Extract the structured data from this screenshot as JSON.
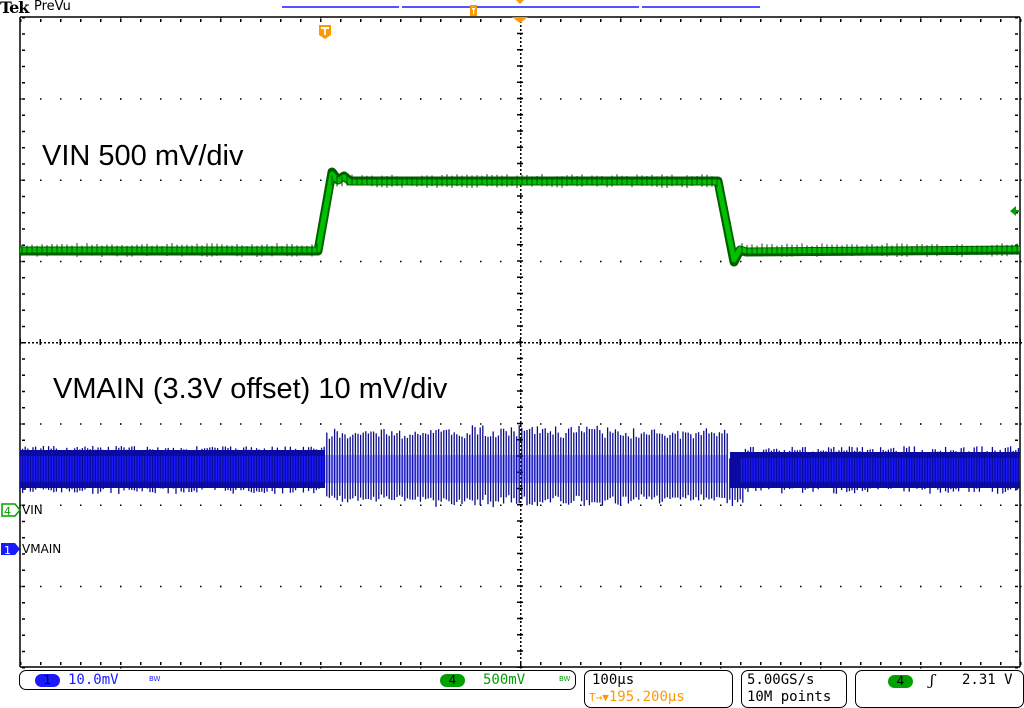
{
  "header": {
    "brand": "Tek",
    "mode": "PreVu"
  },
  "annotations": {
    "vin_label": "VIN 500 mV/div",
    "vmain_label": "VMAIN (3.3V offset) 10 mV/div"
  },
  "channel_markers": [
    {
      "number": "4",
      "name": "VIN",
      "color": "#00a000"
    },
    {
      "number": "1",
      "name": "VMAIN",
      "color": "#1a1aff"
    }
  ],
  "trigger_marker": {
    "icon": "trigger-t-icon",
    "color": "#ff9900"
  },
  "status_bar": {
    "ch1": {
      "number": "1",
      "scale": "10.0mV",
      "bw": "BW",
      "color": "#1a1aff"
    },
    "ch4": {
      "number": "4",
      "scale": "500mV",
      "bw": "BW",
      "color": "#00a000"
    },
    "timebase": {
      "scale": "100µs",
      "trigger_position_prefix": "T→▼",
      "trigger_position": "195.200µs"
    },
    "acquisition": {
      "sample_rate": "5.00GS/s",
      "record_length": "10M points"
    },
    "trigger": {
      "source": "4",
      "slope_icon": "rising-edge-icon",
      "slope_glyph": "ʃ",
      "level": "2.31 V"
    }
  },
  "colors": {
    "ch1_blue": "#1a1aff",
    "ch4_green": "#00a000",
    "trigger_orange": "#ff9900",
    "graticule": "#000000"
  },
  "graticule": {
    "horizontal_divisions": 10,
    "vertical_divisions": 8
  }
}
